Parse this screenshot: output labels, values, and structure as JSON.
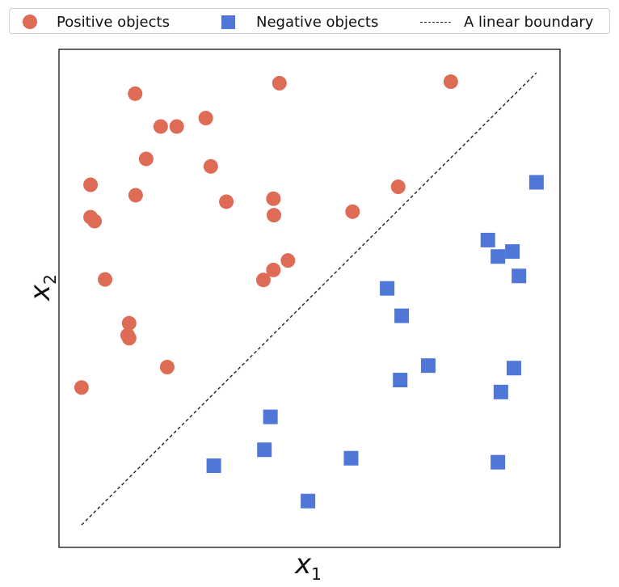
{
  "chart_data": {
    "type": "scatter",
    "title": "",
    "xlabel": "x_1",
    "ylabel": "x_2",
    "xlim": [
      0,
      10
    ],
    "ylim": [
      0,
      10
    ],
    "grid": false,
    "ticks": "none",
    "legend": {
      "position": "top (outside axes)",
      "entries": [
        "Positive objects",
        "Negative objects",
        "A linear boundary"
      ]
    },
    "series": [
      {
        "name": "Positive objects",
        "marker": "circle",
        "color": "#dd6b55",
        "points": [
          [
            1.52,
            9.11
          ],
          [
            4.4,
            9.32
          ],
          [
            7.82,
            9.35
          ],
          [
            2.03,
            8.45
          ],
          [
            2.35,
            8.45
          ],
          [
            2.93,
            8.62
          ],
          [
            1.74,
            7.8
          ],
          [
            3.03,
            7.65
          ],
          [
            6.77,
            7.24
          ],
          [
            0.63,
            7.28
          ],
          [
            4.28,
            7.0
          ],
          [
            1.53,
            7.07
          ],
          [
            3.34,
            6.94
          ],
          [
            4.29,
            6.67
          ],
          [
            5.86,
            6.74
          ],
          [
            0.63,
            6.63
          ],
          [
            0.71,
            6.55
          ],
          [
            4.57,
            5.76
          ],
          [
            4.28,
            5.57
          ],
          [
            4.08,
            5.37
          ],
          [
            0.92,
            5.38
          ],
          [
            1.4,
            4.5
          ],
          [
            1.37,
            4.26
          ],
          [
            1.4,
            4.2
          ],
          [
            2.16,
            3.62
          ],
          [
            0.45,
            3.21
          ]
        ]
      },
      {
        "name": "Negative objects",
        "marker": "square",
        "color": "#5077d8",
        "points": [
          [
            9.53,
            7.33
          ],
          [
            8.56,
            6.17
          ],
          [
            9.05,
            5.94
          ],
          [
            8.76,
            5.84
          ],
          [
            9.18,
            5.45
          ],
          [
            6.55,
            5.2
          ],
          [
            6.84,
            4.65
          ],
          [
            7.37,
            3.65
          ],
          [
            9.08,
            3.6
          ],
          [
            6.81,
            3.36
          ],
          [
            8.82,
            3.12
          ],
          [
            4.22,
            2.62
          ],
          [
            4.1,
            1.96
          ],
          [
            5.83,
            1.79
          ],
          [
            8.76,
            1.71
          ],
          [
            3.09,
            1.64
          ],
          [
            4.97,
            0.93
          ]
        ]
      },
      {
        "name": "A linear boundary",
        "type": "line",
        "style": "dashed",
        "color": "#222222",
        "points": [
          [
            0.45,
            0.45
          ],
          [
            9.53,
            9.53
          ]
        ]
      }
    ]
  },
  "legend": {
    "positive_label": "Positive objects",
    "negative_label": "Negative objects",
    "boundary_label": "A linear boundary"
  },
  "axes": {
    "x_label": "x",
    "x_sub": "1",
    "y_label": "x",
    "y_sub": "2"
  }
}
